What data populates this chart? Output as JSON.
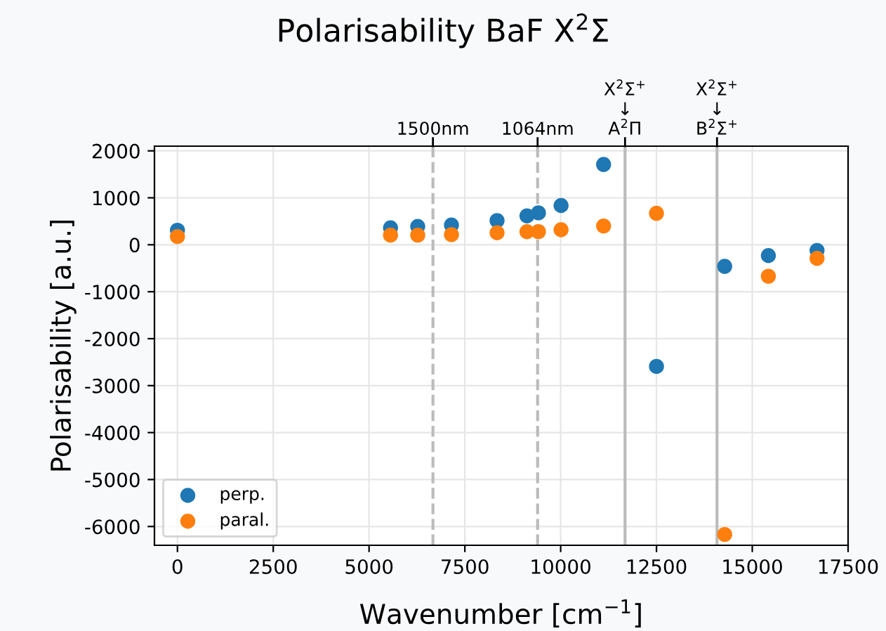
{
  "chart_data": {
    "type": "scatter",
    "title": "Polarisability BaF X$^{2}$Σ",
    "xlabel": "Wavenumber [cm$^{−1}$]",
    "ylabel": "Polarisability [a.u.]",
    "x": [
      0,
      5560,
      6270,
      7150,
      8340,
      9120,
      9420,
      10010,
      11120,
      12500,
      14280,
      15420,
      16690
    ],
    "series": [
      {
        "name": "perp.",
        "color": "#1f77b4",
        "values": [
          310,
          360,
          390,
          420,
          515,
          615,
          680,
          835,
          1710,
          -2590,
          -460,
          -230,
          -120
        ]
      },
      {
        "name": "paral.",
        "color": "#ff7f0e",
        "values": [
          175,
          205,
          205,
          216,
          255,
          278,
          280,
          320,
          400,
          670,
          -6170,
          -670,
          -290
        ]
      }
    ],
    "xlim": [
      -600,
      17500
    ],
    "ylim": [
      -6400,
      2100
    ],
    "xticks": [
      0,
      2500,
      5000,
      7500,
      10000,
      12500,
      15000,
      17500
    ],
    "yticks": [
      -6000,
      -5000,
      -4000,
      -3000,
      -2000,
      -1000,
      0,
      1000,
      2000
    ],
    "ref_lines": [
      {
        "axis": "x",
        "value": 6667,
        "label": "1500nm",
        "color": "#bbbbbb",
        "line_style": "dashed"
      },
      {
        "axis": "x",
        "value": 9398,
        "label": "1064nm",
        "color": "#bbbbbb",
        "line_style": "dashed"
      },
      {
        "axis": "x",
        "value": 11680,
        "label": "X$^{2}$Σ$^{+}$\n↓\nA$^{2}$Π",
        "color": "#bbbbbb",
        "line_style": "solid"
      },
      {
        "axis": "x",
        "value": 14080,
        "label": "X$^{2}$Σ$^{+}$\n↓\nB$^{2}$Σ$^{+}$",
        "color": "#bbbbbb",
        "line_style": "solid"
      }
    ],
    "grid": true,
    "legend": "bottom left",
    "marker": "circle"
  }
}
